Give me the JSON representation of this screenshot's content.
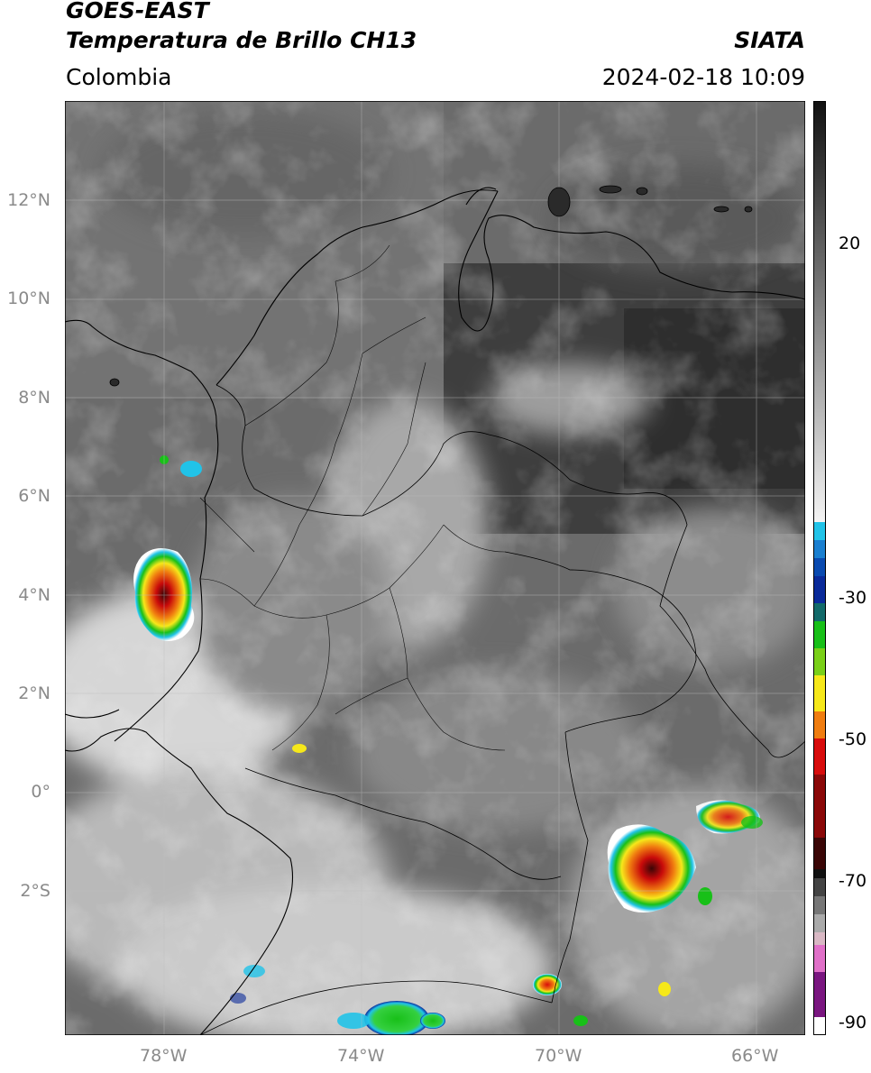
{
  "header": {
    "satellite": "GOES-EAST",
    "product": "Temperatura de Brillo CH13",
    "region": "Colombia",
    "agency": "SIATA",
    "datetime": "2024-02-18 10:09"
  },
  "map": {
    "lat_labels": [
      "12°N",
      "10°N",
      "8°N",
      "6°N",
      "4°N",
      "2°N",
      "0°",
      "2°S"
    ],
    "lon_labels": [
      "78°W",
      "74°W",
      "70°W",
      "66°W"
    ],
    "lat_range": [
      -4.9,
      14.0
    ],
    "lon_range": [
      -80.0,
      -65.0
    ],
    "grid": true
  },
  "colorbar": {
    "tick_labels": [
      "20",
      "-30",
      "-50",
      "-70",
      "-90"
    ],
    "range": [
      -92,
      40
    ],
    "colors": {
      "warm_gray_top": "#111111",
      "cold_gray": "#f4f4f4",
      "cyan": "#21c3e8",
      "blue": "#0a2a9a",
      "green": "#18c018",
      "yellow": "#f6e81a",
      "orange": "#f07d10",
      "red": "#d80c0c",
      "dark_red": "#3a0606",
      "magenta": "#e070c8",
      "purple": "#7a1680"
    }
  }
}
